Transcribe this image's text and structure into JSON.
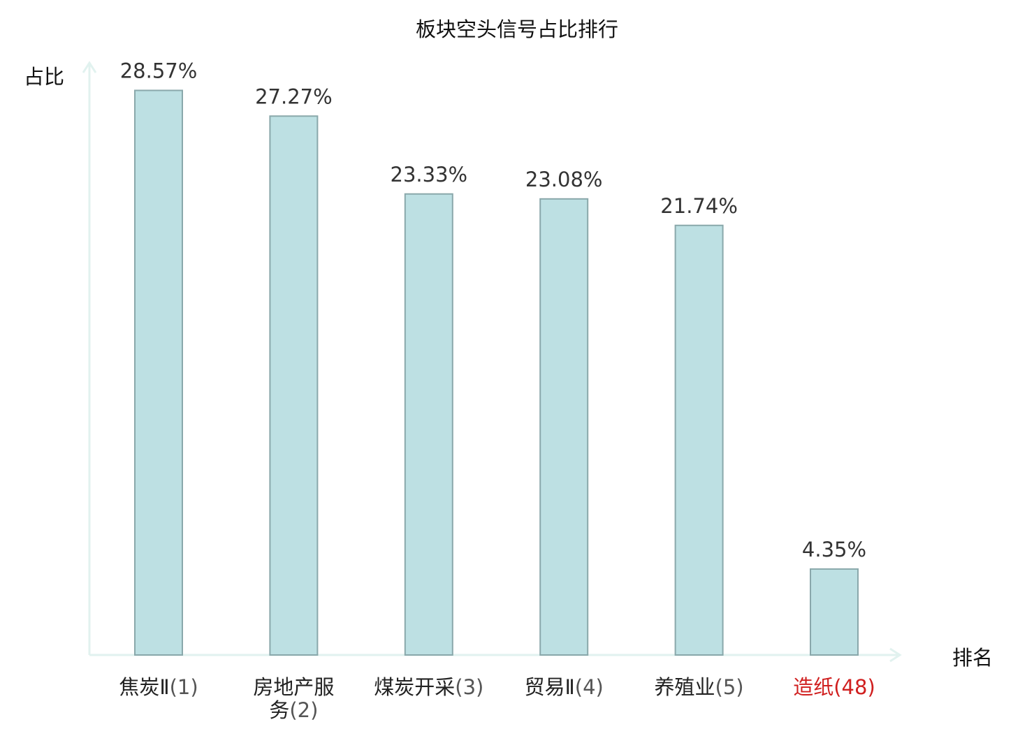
{
  "chart_data": {
    "type": "bar",
    "title": "板块空头信号占比排行",
    "ylabel": "占比",
    "xlabel": "排名",
    "ylim": [
      0,
      30
    ],
    "grid": false,
    "categories": [
      {
        "name": "焦炭Ⅱ",
        "rank": "(1)",
        "highlight": false
      },
      {
        "name": "房地产服务",
        "rank": "(2)",
        "highlight": false
      },
      {
        "name": "煤炭开采",
        "rank": "(3)",
        "highlight": false
      },
      {
        "name": "贸易Ⅱ",
        "rank": "(4)",
        "highlight": false
      },
      {
        "name": "养殖业",
        "rank": "(5)",
        "highlight": false
      },
      {
        "name": "造纸",
        "rank": "(48)",
        "highlight": true
      }
    ],
    "values": [
      28.57,
      27.27,
      23.33,
      23.08,
      21.74,
      4.35
    ],
    "value_labels": [
      "28.57%",
      "27.27%",
      "23.33%",
      "23.08%",
      "21.74%",
      "4.35%"
    ]
  },
  "colors": {
    "bar_fill": "#bde0e3",
    "bar_stroke": "#8aa8ab",
    "axis": "#e1f2ef",
    "text": "#222222",
    "value_text": "#333333",
    "rank_text": "#555555",
    "highlight": "#d01f1f"
  }
}
